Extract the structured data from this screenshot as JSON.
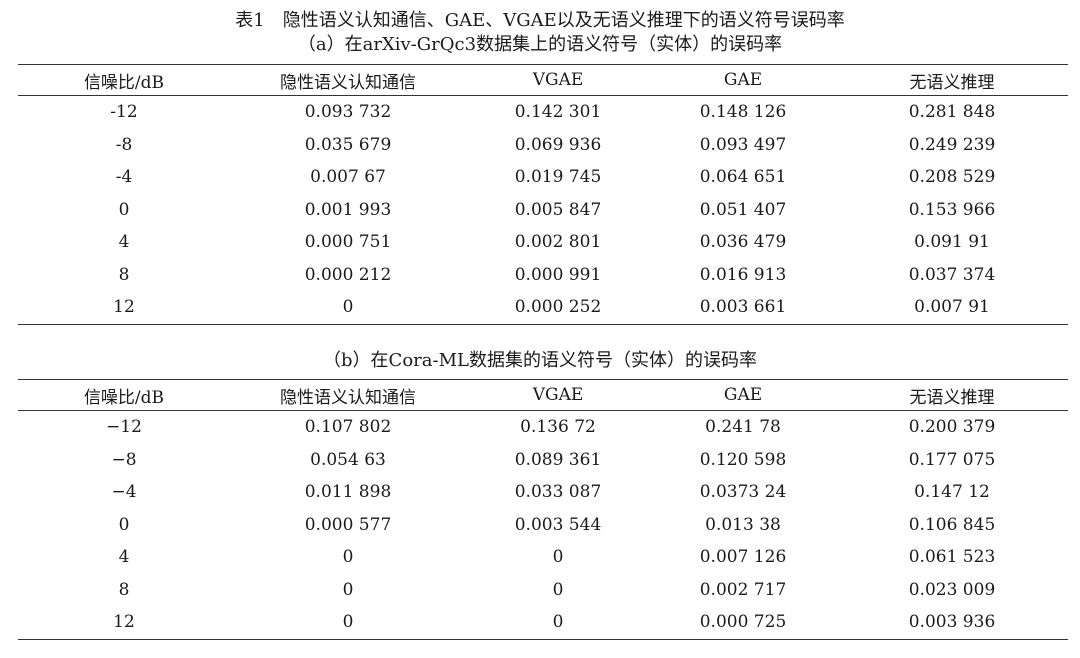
{
  "title": "表1　隐性语义认知通信、GAE、VGAE以及无语义推理下的语义符号误码率",
  "headers": [
    "信噪比/dB",
    "隐性语义认知通信",
    "VGAE",
    "GAE",
    "无语义推理"
  ],
  "table_a": {
    "caption": "（a）在arXiv-GrQc3数据集上的语义符号（实体）的误码率",
    "rows": [
      [
        "-12",
        "0.093 732",
        "0.142 301",
        "0.148 126",
        "0.281 848"
      ],
      [
        "-8",
        "0.035 679",
        "0.069 936",
        "0.093 497",
        "0.249 239"
      ],
      [
        "-4",
        "0.007 67",
        "0.019 745",
        "0.064 651",
        "0.208 529"
      ],
      [
        "0",
        "0.001 993",
        "0.005 847",
        "0.051 407",
        "0.153 966"
      ],
      [
        "4",
        "0.000 751",
        "0.002 801",
        "0.036 479",
        "0.091 91"
      ],
      [
        "8",
        "0.000 212",
        "0.000 991",
        "0.016 913",
        "0.037 374"
      ],
      [
        "12",
        "0",
        "0.000 252",
        "0.003 661",
        "0.007 91"
      ]
    ]
  },
  "table_b": {
    "caption": "（b）在Cora-ML数据集的语义符号（实体）的误码率",
    "rows": [
      [
        "−12",
        "0.107 802",
        "0.136 72",
        "0.241 78",
        "0.200 379"
      ],
      [
        "−8",
        "0.054 63",
        "0.089 361",
        "0.120 598",
        "0.177 075"
      ],
      [
        "−4",
        "0.011 898",
        "0.033 087",
        "0.0373 24",
        "0.147 12"
      ],
      [
        "0",
        "0.000 577",
        "0.003 544",
        "0.013 38",
        "0.106 845"
      ],
      [
        "4",
        "0",
        "0",
        "0.007 126",
        "0.061 523"
      ],
      [
        "8",
        "0",
        "0",
        "0.002 717",
        "0.023 009"
      ],
      [
        "12",
        "0",
        "0",
        "0.000 725",
        "0.003 936"
      ]
    ]
  }
}
